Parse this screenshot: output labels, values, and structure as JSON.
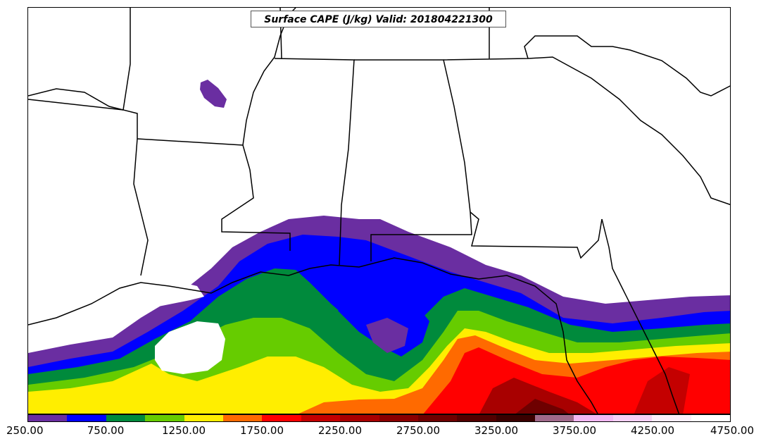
{
  "title": "Surface CAPE (J/kg) Valid: 201804221300",
  "colorbar": {
    "colors": [
      "#6a2ea1",
      "#0000ff",
      "#008a3c",
      "#66cc00",
      "#ffee00",
      "#ff6a00",
      "#ff0000",
      "#c40000",
      "#a80000",
      "#8a0000",
      "#6e0000",
      "#520000",
      "#3a0000",
      "#a06a8a",
      "#f2b8f2",
      "#f5d0f5",
      "#fbeefb",
      "#ffffff"
    ],
    "ticks": [
      "250.00",
      "750.00",
      "1250.00",
      "1750.00",
      "2250.00",
      "2750.00",
      "3250.00",
      "3750.00",
      "4250.00",
      "4750.00"
    ]
  }
}
